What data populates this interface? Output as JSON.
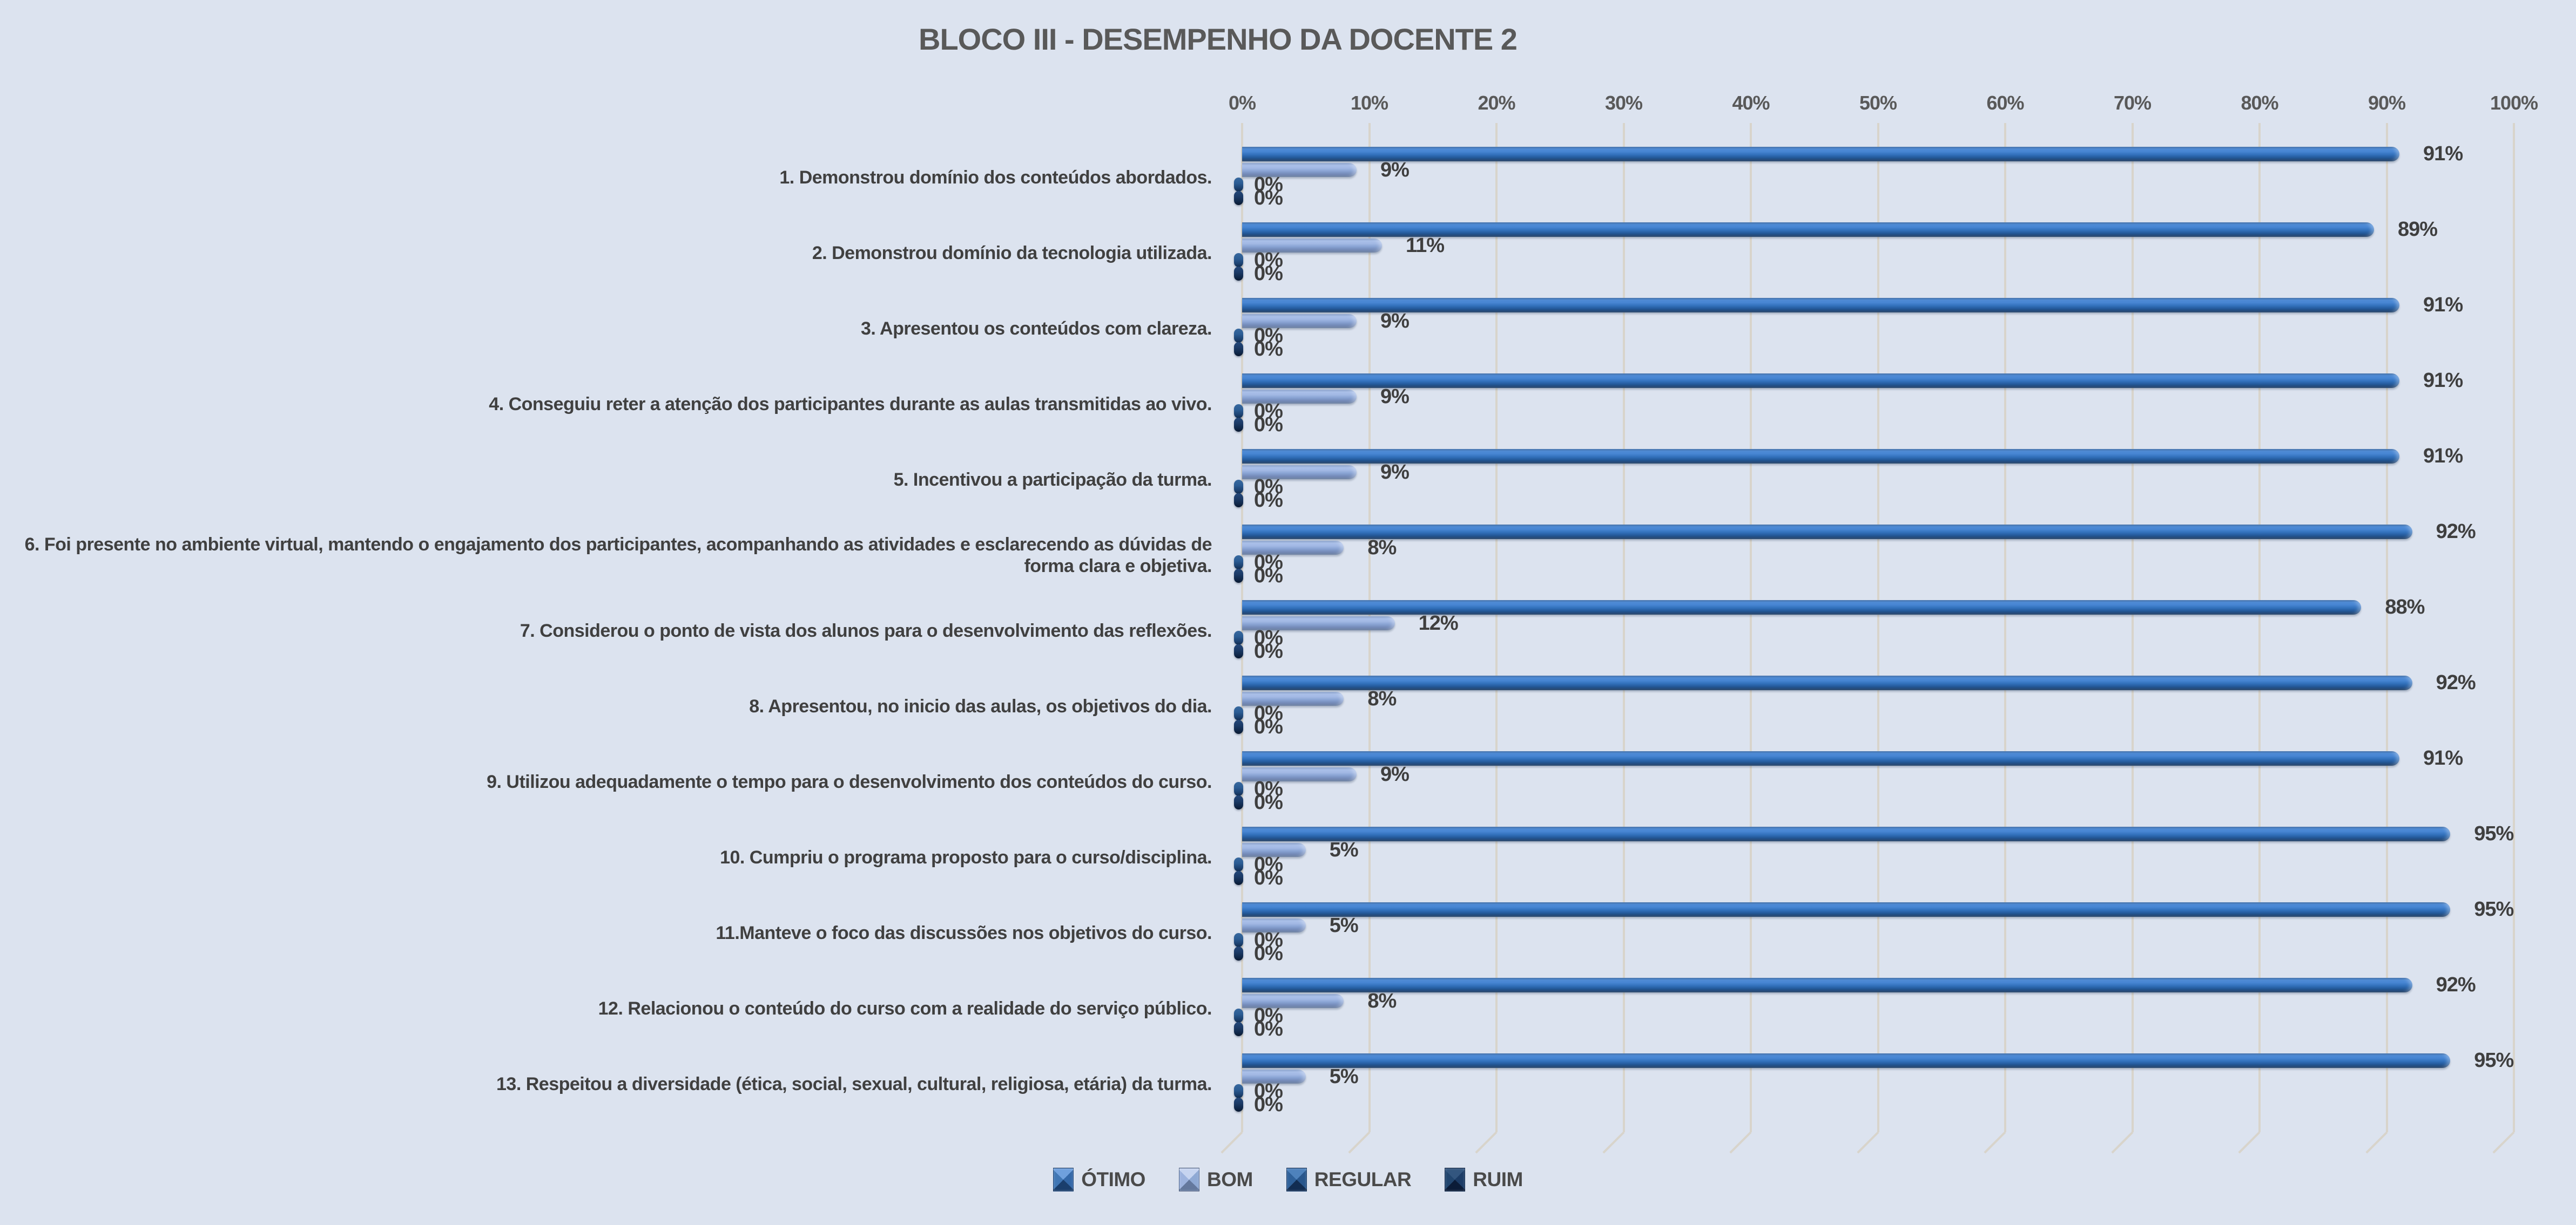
{
  "title": "BLOCO III - DESEMPENHO DA DOCENTE 2",
  "colors": {
    "background": "#DCE3EF",
    "gridline": "#D8D4CB",
    "title_text": "#595959",
    "label_text": "#404040",
    "value_text": "#3F3F3F",
    "otimo": "#2E6DB4",
    "bom": "#9AB2DF",
    "regular": "#2A5E93",
    "ruim": "#1B3A63"
  },
  "chart_data": {
    "type": "bar",
    "orientation": "horizontal",
    "grid": true,
    "legend_position": "bottom",
    "xlim": [
      0,
      100
    ],
    "x_ticks": [
      "0%",
      "10%",
      "20%",
      "30%",
      "40%",
      "50%",
      "60%",
      "70%",
      "80%",
      "90%",
      "100%"
    ],
    "categories": [
      "1. Demonstrou domínio dos conteúdos abordados.",
      "2. Demonstrou domínio da tecnologia utilizada.",
      "3. Apresentou os conteúdos com clareza.",
      "4. Conseguiu reter a atenção dos participantes durante as aulas transmitidas ao vivo.",
      "5. Incentivou a participação da turma.",
      "6. Foi presente no ambiente virtual, mantendo o engajamento dos participantes, acompanhando as atividades e esclarecendo as dúvidas de forma clara e objetiva.",
      "7. Considerou o ponto de vista dos alunos para o desenvolvimento das reflexões.",
      "8. Apresentou, no inicio das aulas, os objetivos do dia.",
      "9. Utilizou adequadamente o tempo para o desenvolvimento dos conteúdos do curso.",
      "10. Cumpriu o programa proposto para o curso/disciplina.",
      "11.Manteve o foco das discussões nos objetivos do curso.",
      "12. Relacionou o conteúdo do curso com a realidade do serviço público.",
      "13. Respeitou a diversidade (ética, social, sexual, cultural, religiosa, etária) da turma."
    ],
    "series": [
      {
        "name": "ÓTIMO",
        "key": "otimo",
        "values": [
          91,
          89,
          91,
          91,
          91,
          92,
          88,
          92,
          91,
          95,
          95,
          92,
          95
        ],
        "value_labels": [
          "91%",
          "89%",
          "91%",
          "91%",
          "91%",
          "92%",
          "88%",
          "92%",
          "91%",
          "95%",
          "95%",
          "92%",
          "95%"
        ]
      },
      {
        "name": "BOM",
        "key": "bom",
        "values": [
          9,
          11,
          9,
          9,
          9,
          8,
          12,
          8,
          9,
          5,
          5,
          8,
          5
        ],
        "value_labels": [
          "9%",
          "11%",
          "9%",
          "9%",
          "9%",
          "8%",
          "12%",
          "8%",
          "9%",
          "5%",
          "5%",
          "8%",
          "5%"
        ]
      },
      {
        "name": "REGULAR",
        "key": "regular",
        "values": [
          0,
          0,
          0,
          0,
          0,
          0,
          0,
          0,
          0,
          0,
          0,
          0,
          0
        ],
        "value_labels": [
          "0%",
          "0%",
          "0%",
          "0%",
          "0%",
          "0%",
          "0%",
          "0%",
          "0%",
          "0%",
          "0%",
          "0%",
          "0%"
        ]
      },
      {
        "name": "RUIM",
        "key": "ruim",
        "values": [
          0,
          0,
          0,
          0,
          0,
          0,
          0,
          0,
          0,
          0,
          0,
          0,
          0
        ],
        "value_labels": [
          "0%",
          "0%",
          "0%",
          "0%",
          "0%",
          "0%",
          "0%",
          "0%",
          "0%",
          "0%",
          "0%",
          "0%",
          "0%"
        ]
      }
    ]
  }
}
